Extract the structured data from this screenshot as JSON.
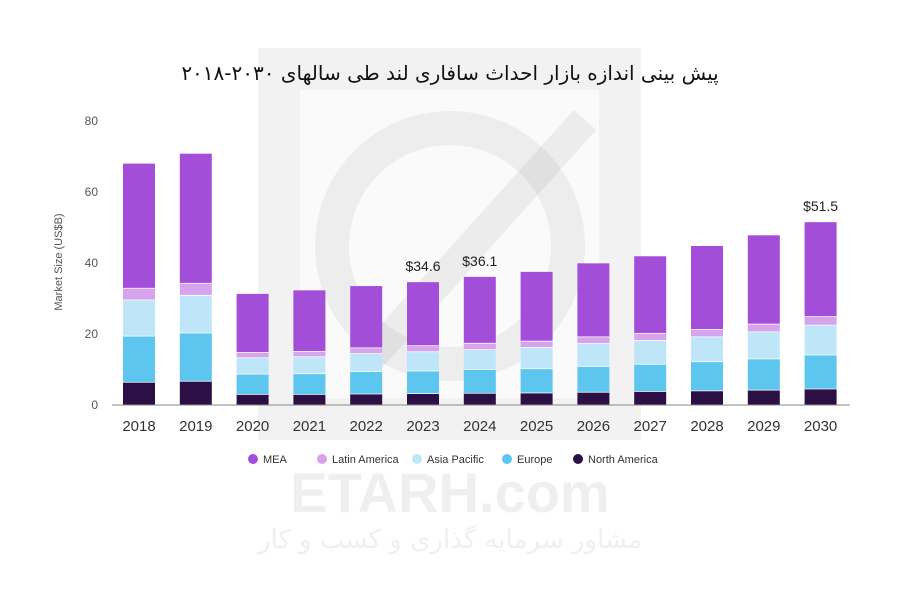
{
  "chart_data": {
    "type": "bar",
    "stacked": true,
    "title": "پیش بینی اندازه بازار احداث سافاری لند طی سالهای ۲۰۳۰-۲۰۱۸",
    "ylabel": "Market Size (US$B)",
    "xlabel": "",
    "ylim": [
      0,
      80
    ],
    "yticks": [
      0,
      20,
      40,
      60,
      80
    ],
    "grid": false,
    "legend_position": "bottom",
    "categories": [
      "2018",
      "2019",
      "2020",
      "2021",
      "2022",
      "2023",
      "2024",
      "2025",
      "2026",
      "2027",
      "2028",
      "2029",
      "2030"
    ],
    "series": [
      {
        "name": "North America",
        "color": "#2c0f45",
        "values": [
          6.5,
          6.8,
          3.1,
          3.1,
          3.2,
          3.3,
          3.4,
          3.5,
          3.7,
          3.9,
          4.1,
          4.3,
          4.6
        ]
      },
      {
        "name": "Europe",
        "color": "#5cc6ee",
        "values": [
          13.0,
          13.6,
          5.7,
          5.8,
          6.3,
          6.4,
          6.7,
          6.8,
          7.3,
          7.7,
          8.2,
          8.8,
          9.6
        ]
      },
      {
        "name": "Asia Pacific",
        "color": "#bfe6f8",
        "values": [
          10.2,
          10.6,
          4.6,
          4.8,
          5.1,
          5.4,
          5.6,
          6.0,
          6.4,
          6.7,
          7.0,
          7.6,
          8.4
        ]
      },
      {
        "name": "Latin America",
        "color": "#d5a4ec",
        "values": [
          3.3,
          3.4,
          1.5,
          1.5,
          1.6,
          1.7,
          1.8,
          1.8,
          1.9,
          2.0,
          2.1,
          2.2,
          2.4
        ]
      },
      {
        "name": "MEA",
        "color": "#a24ed8",
        "values": [
          35.0,
          36.4,
          16.4,
          17.1,
          17.3,
          17.8,
          18.6,
          19.4,
          20.6,
          21.6,
          23.4,
          24.9,
          26.5
        ]
      }
    ],
    "annotations": [
      {
        "category": "2023",
        "text": "$34.6"
      },
      {
        "category": "2024",
        "text": "$36.1"
      },
      {
        "category": "2030",
        "text": "$51.5"
      }
    ]
  },
  "watermark": {
    "brand": "ETARH.com",
    "tagline": "مشاور سرمایه گذاری و کسب و کار"
  }
}
